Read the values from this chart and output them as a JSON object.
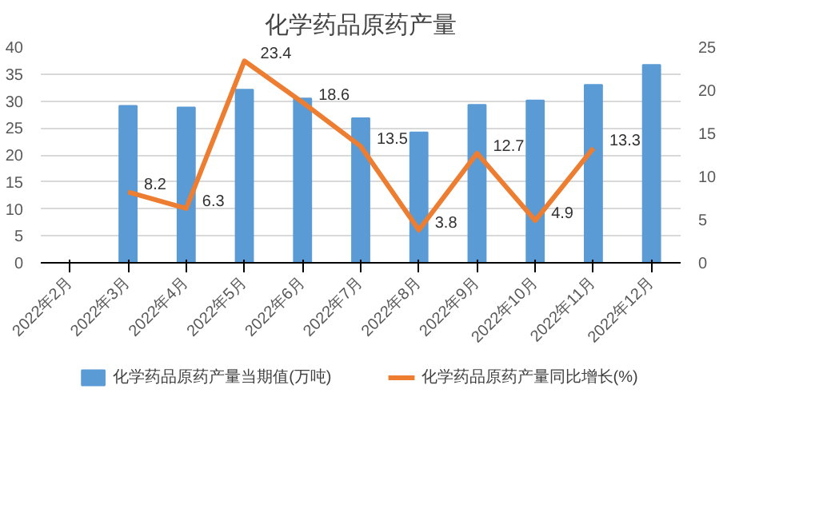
{
  "chart_data": {
    "type": "bar",
    "title": "化学药品原药产量",
    "categories": [
      "2022年2月",
      "2022年3月",
      "2022年4月",
      "2022年5月",
      "2022年6月",
      "2022年7月",
      "2022年8月",
      "2022年9月",
      "2022年10月",
      "2022年11月",
      "2022年12月"
    ],
    "series": [
      {
        "name": "化学药品原药产量当期值(万吨)",
        "color": "#5b9bd5",
        "values": [
          null,
          29.1,
          28.8,
          32.1,
          30.5,
          26.8,
          24.2,
          29.3,
          30.1,
          33.0,
          36.7
        ]
      },
      {
        "name": "化学药品原药产量同比增长(%)",
        "type": "line",
        "axis": "y2",
        "color": "#ed7d31",
        "data_labels": true,
        "values": [
          null,
          8.2,
          6.3,
          23.4,
          18.6,
          13.5,
          3.8,
          12.7,
          4.9,
          13.3,
          null
        ]
      }
    ],
    "ylim": [
      0,
      40
    ],
    "yticks": [
      0,
      5,
      10,
      15,
      20,
      25,
      30,
      35,
      40
    ],
    "y2lim": [
      0,
      25
    ],
    "y2ticks": [
      0,
      5,
      10,
      15,
      20,
      25
    ],
    "grid": "y",
    "legend": "bottom"
  }
}
